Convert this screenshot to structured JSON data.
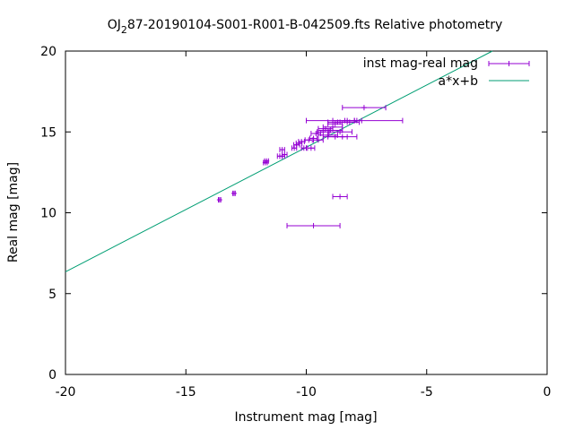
{
  "chart_data": {
    "type": "scatter",
    "title_prefix": "OJ",
    "title_subscript": "2",
    "title_suffix": "87-20190104-S001-R001-B-042509.fts Relative photometry",
    "xlabel": "Instrument mag [mag]",
    "ylabel": "Real mag [mag]",
    "xlim": [
      -20,
      0
    ],
    "ylim": [
      0,
      20
    ],
    "xticks": [
      -20,
      -15,
      -10,
      -5,
      0
    ],
    "yticks": [
      0,
      5,
      10,
      15,
      20
    ],
    "grid": false,
    "legend_position": "top-right",
    "series": [
      {
        "name": "inst mag-real mag",
        "style": "points-with-xerrorbars",
        "color": "#9400d3",
        "points": [
          {
            "x": -13.6,
            "y": 10.8,
            "xerr": 0.05
          },
          {
            "x": -13.0,
            "y": 11.2,
            "xerr": 0.05
          },
          {
            "x": -11.7,
            "y": 13.1,
            "xerr": 0.08
          },
          {
            "x": -11.65,
            "y": 13.2,
            "xerr": 0.08
          },
          {
            "x": -11.1,
            "y": 13.5,
            "xerr": 0.1
          },
          {
            "x": -11.0,
            "y": 13.5,
            "xerr": 0.1
          },
          {
            "x": -11.0,
            "y": 13.9,
            "xerr": 0.1
          },
          {
            "x": -10.9,
            "y": 13.6,
            "xerr": 0.1
          },
          {
            "x": -10.5,
            "y": 14.0,
            "xerr": 0.1
          },
          {
            "x": -10.4,
            "y": 14.2,
            "xerr": 0.12
          },
          {
            "x": -10.3,
            "y": 14.3,
            "xerr": 0.12
          },
          {
            "x": -10.2,
            "y": 14.4,
            "xerr": 0.12
          },
          {
            "x": -10.1,
            "y": 14.0,
            "xerr": 0.1
          },
          {
            "x": -9.9,
            "y": 14.5,
            "xerr": 0.15
          },
          {
            "x": -9.8,
            "y": 14.0,
            "xerr": 0.15
          },
          {
            "x": -9.7,
            "y": 14.6,
            "xerr": 0.15
          },
          {
            "x": -9.6,
            "y": 14.9,
            "xerr": 0.2
          },
          {
            "x": -9.5,
            "y": 14.5,
            "xerr": 0.2
          },
          {
            "x": -9.3,
            "y": 15.0,
            "xerr": 0.25
          },
          {
            "x": -9.2,
            "y": 15.2,
            "xerr": 0.3
          },
          {
            "x": -9.1,
            "y": 14.8,
            "xerr": 0.4
          },
          {
            "x": -9.0,
            "y": 15.1,
            "xerr": 0.5
          },
          {
            "x": -8.9,
            "y": 15.3,
            "xerr": 0.4
          },
          {
            "x": -8.8,
            "y": 15.5,
            "xerr": 0.3
          },
          {
            "x": -8.7,
            "y": 15.6,
            "xerr": 0.4
          },
          {
            "x": -8.6,
            "y": 15.0,
            "xerr": 0.5
          },
          {
            "x": -8.5,
            "y": 14.7,
            "xerr": 0.6
          },
          {
            "x": -8.4,
            "y": 15.7,
            "xerr": 0.5
          },
          {
            "x": -8.8,
            "y": 14.7,
            "xerr": 0.5
          },
          {
            "x": -8.2,
            "y": 15.6,
            "xerr": 0.4
          },
          {
            "x": -8.0,
            "y": 15.7,
            "xerr": 0.3
          },
          {
            "x": -8.0,
            "y": 15.7,
            "xerr": 2.0
          },
          {
            "x": -7.6,
            "y": 16.5,
            "xerr": 0.9
          },
          {
            "x": -8.6,
            "y": 11.0,
            "xerr": 0.3
          },
          {
            "x": -9.7,
            "y": 9.2,
            "xerr": 1.1
          }
        ]
      },
      {
        "name": "a*x+b",
        "style": "line",
        "color": "#009e73",
        "slope": 0.77,
        "intercept": 21.75
      }
    ]
  }
}
